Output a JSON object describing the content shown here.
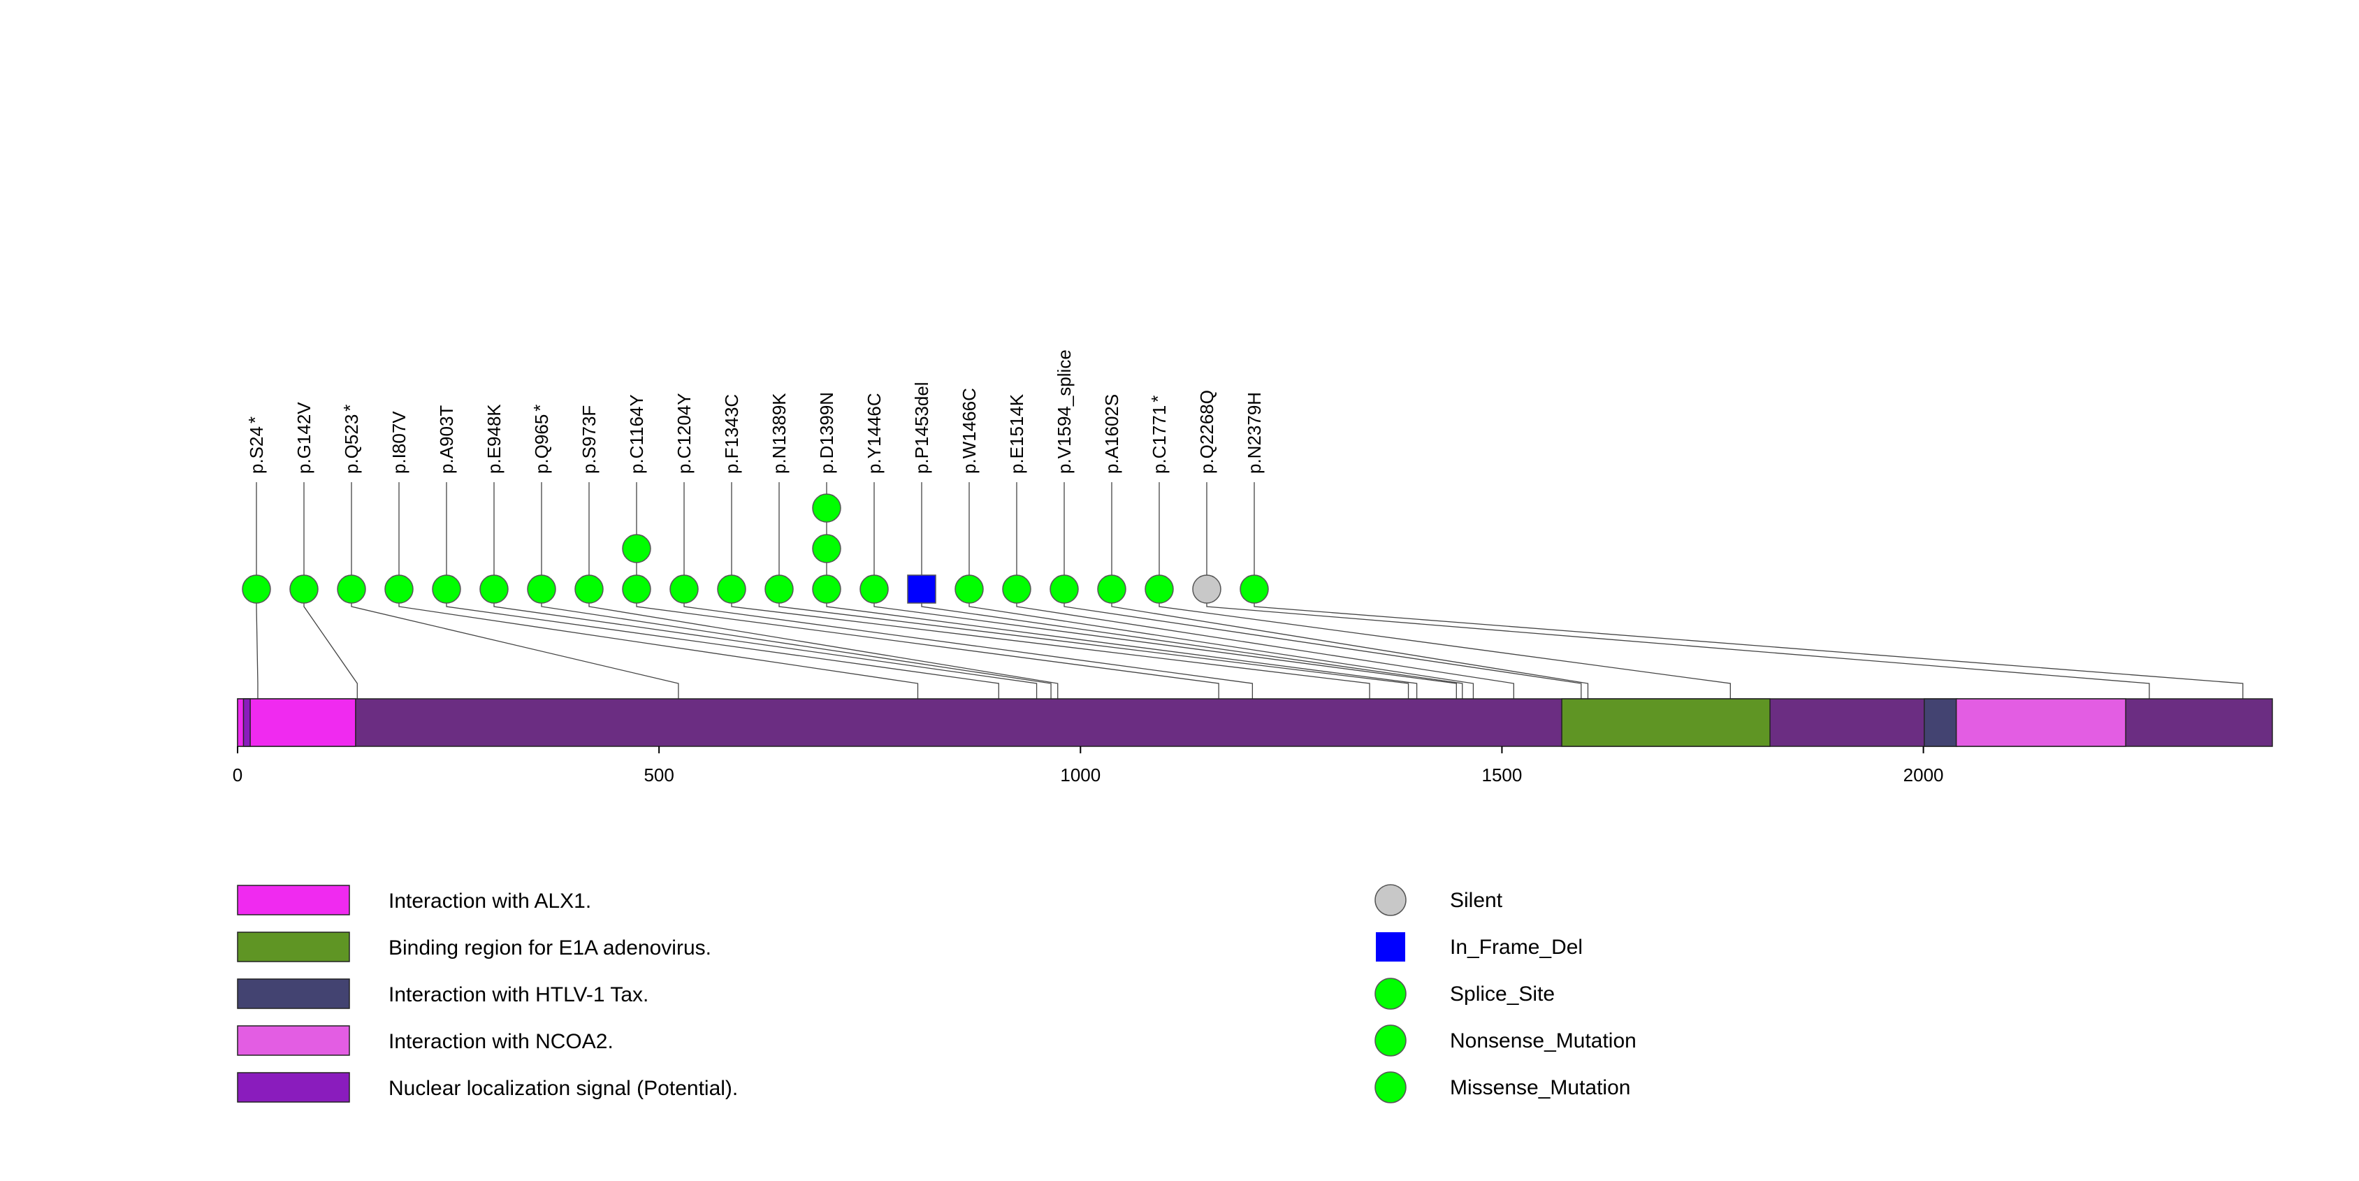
{
  "chart_data": {
    "type": "lollipop",
    "protein_length": 2414,
    "x_ticks": [
      0,
      500,
      1000,
      1500,
      2000
    ],
    "backbone_color": "#6b2d82",
    "domains": [
      {
        "name": "Interaction with ALX1.",
        "start": 1,
        "end": 140,
        "color": "#f02af0"
      },
      {
        "name": "Nuclear localization signal (Potential).",
        "start": 8,
        "end": 15,
        "color": "#8a1cbd"
      },
      {
        "name": "Binding region for E1A adenovirus.",
        "start": 1572,
        "end": 1818,
        "color": "#5f9524"
      },
      {
        "name": "Interaction with HTLV-1 Tax.",
        "start": 2002,
        "end": 2040,
        "color": "#434371"
      },
      {
        "name": "Interaction with NCOA2.",
        "start": 2040,
        "end": 2240,
        "color": "#e35de3"
      }
    ],
    "mutations": [
      {
        "label": "p.S24",
        "star": true,
        "pos": 24,
        "col": 0,
        "count": 1,
        "type": "Nonsense_Mutation"
      },
      {
        "label": "p.G142V",
        "star": false,
        "pos": 142,
        "col": 1,
        "count": 1,
        "type": "Missense_Mutation"
      },
      {
        "label": "p.Q523",
        "star": true,
        "pos": 523,
        "col": 2,
        "count": 1,
        "type": "Nonsense_Mutation"
      },
      {
        "label": "p.I807V",
        "star": false,
        "pos": 807,
        "col": 3,
        "count": 1,
        "type": "Missense_Mutation"
      },
      {
        "label": "p.A903T",
        "star": false,
        "pos": 903,
        "col": 4,
        "count": 1,
        "type": "Missense_Mutation"
      },
      {
        "label": "p.E948K",
        "star": false,
        "pos": 948,
        "col": 5,
        "count": 1,
        "type": "Missense_Mutation"
      },
      {
        "label": "p.Q965",
        "star": true,
        "pos": 965,
        "col": 6,
        "count": 1,
        "type": "Nonsense_Mutation"
      },
      {
        "label": "p.S973F",
        "star": false,
        "pos": 973,
        "col": 7,
        "count": 1,
        "type": "Missense_Mutation"
      },
      {
        "label": "p.C1164Y",
        "star": false,
        "pos": 1164,
        "col": 8,
        "count": 2,
        "type": "Missense_Mutation"
      },
      {
        "label": "p.C1204Y",
        "star": false,
        "pos": 1204,
        "col": 9,
        "count": 1,
        "type": "Missense_Mutation"
      },
      {
        "label": "p.F1343C",
        "star": false,
        "pos": 1343,
        "col": 10,
        "count": 1,
        "type": "Missense_Mutation"
      },
      {
        "label": "p.N1389K",
        "star": false,
        "pos": 1389,
        "col": 11,
        "count": 1,
        "type": "Missense_Mutation"
      },
      {
        "label": "p.D1399N",
        "star": false,
        "pos": 1399,
        "col": 12,
        "count": 3,
        "type": "Missense_Mutation"
      },
      {
        "label": "p.Y1446C",
        "star": false,
        "pos": 1446,
        "col": 13,
        "count": 1,
        "type": "Missense_Mutation"
      },
      {
        "label": "p.P1453del",
        "star": false,
        "pos": 1453,
        "col": 14,
        "count": 1,
        "type": "In_Frame_Del"
      },
      {
        "label": "p.W1466C",
        "star": false,
        "pos": 1466,
        "col": 15,
        "count": 1,
        "type": "Missense_Mutation"
      },
      {
        "label": "p.E1514K",
        "star": false,
        "pos": 1514,
        "col": 16,
        "count": 1,
        "type": "Missense_Mutation"
      },
      {
        "label": "p.V1594_splice",
        "star": false,
        "pos": 1594,
        "col": 17,
        "count": 1,
        "type": "Splice_Site"
      },
      {
        "label": "p.A1602S",
        "star": false,
        "pos": 1602,
        "col": 18,
        "count": 1,
        "type": "Missense_Mutation"
      },
      {
        "label": "p.C1771",
        "star": true,
        "pos": 1771,
        "col": 19,
        "count": 1,
        "type": "Nonsense_Mutation"
      },
      {
        "label": "p.Q2268Q",
        "star": false,
        "pos": 2268,
        "col": 20,
        "count": 1,
        "type": "Silent"
      },
      {
        "label": "p.N2379H",
        "star": false,
        "pos": 2379,
        "col": 21,
        "count": 1,
        "type": "Missense_Mutation"
      }
    ],
    "star_glyph": "*",
    "mutation_legend": [
      {
        "name": "Silent",
        "shape": "circle",
        "color": "#c8c8c8"
      },
      {
        "name": "In_Frame_Del",
        "shape": "square",
        "color": "#0000ff"
      },
      {
        "name": "Splice_Site",
        "shape": "circle",
        "color": "#00ff00"
      },
      {
        "name": "Nonsense_Mutation",
        "shape": "circle",
        "color": "#00ff00"
      },
      {
        "name": "Missense_Mutation",
        "shape": "circle",
        "color": "#00ff00"
      }
    ],
    "domain_legend": [
      {
        "name": "Interaction with ALX1.",
        "color": "#f02af0"
      },
      {
        "name": "Binding region for E1A adenovirus.",
        "color": "#5f9524"
      },
      {
        "name": "Interaction with HTLV-1 Tax.",
        "color": "#434371"
      },
      {
        "name": "Interaction with NCOA2.",
        "color": "#e35de3"
      },
      {
        "name": "Nuclear localization signal (Potential).",
        "color": "#8a1cbd"
      }
    ]
  }
}
